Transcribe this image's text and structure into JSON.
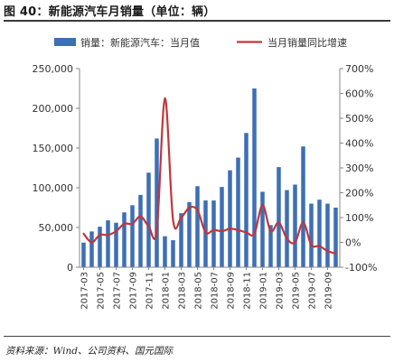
{
  "header": {
    "title": "图 40：新能源汽车月销量（单位：辆）"
  },
  "footer": {
    "source": "资料来源：Wind、公司资料、国元国际"
  },
  "chart_data": {
    "type": "bar",
    "secondary_type": "line",
    "x": [
      "2017-03",
      "2017-04",
      "2017-05",
      "2017-06",
      "2017-07",
      "2017-08",
      "2017-09",
      "2017-10",
      "2017-11",
      "2017-12",
      "2018-01",
      "2018-02",
      "2018-03",
      "2018-04",
      "2018-05",
      "2018-06",
      "2018-07",
      "2018-08",
      "2018-09",
      "2018-10",
      "2018-11",
      "2018-12",
      "2019-01",
      "2019-02",
      "2019-03",
      "2019-04",
      "2019-05",
      "2019-06",
      "2019-07",
      "2019-08",
      "2019-09",
      "2019-10"
    ],
    "x_tick_labels": [
      "2017-03",
      "2017-05",
      "2017-07",
      "2017-09",
      "2017-11",
      "2018-01",
      "2018-03",
      "2018-05",
      "2018-07",
      "2018-09",
      "2018-11",
      "2019-01",
      "2019-03",
      "2019-05",
      "2019-07",
      "2019-09"
    ],
    "series": [
      {
        "name": "销量：新能源汽车：当月值",
        "kind": "bar",
        "axis": "left",
        "color": "#3d6fb5",
        "values": [
          31000,
          45000,
          51000,
          59000,
          56000,
          69000,
          78000,
          91000,
          119000,
          162000,
          39000,
          34000,
          68000,
          82000,
          102000,
          84000,
          84000,
          101000,
          122000,
          138000,
          169000,
          225000,
          95000,
          53000,
          126000,
          97000,
          104000,
          152000,
          80000,
          85000,
          80000,
          75000
        ]
      },
      {
        "name": "当月销量同比增速",
        "kind": "line",
        "axis": "right",
        "color": "#c0373b",
        "values": [
          35,
          0,
          30,
          30,
          45,
          75,
          75,
          105,
          65,
          50,
          580,
          90,
          100,
          140,
          130,
          40,
          50,
          45,
          55,
          50,
          40,
          35,
          150,
          45,
          80,
          15,
          0,
          80,
          -10,
          -15,
          -35,
          -45
        ]
      }
    ],
    "y_left": {
      "min": 0,
      "max": 250000,
      "ticks": [
        "0",
        "50,000",
        "100,000",
        "150,000",
        "200,000",
        "250,000"
      ]
    },
    "y_right": {
      "min": -100,
      "max": 700,
      "ticks": [
        "-100%",
        "0%",
        "100%",
        "200%",
        "300%",
        "400%",
        "500%",
        "600%",
        "700%"
      ]
    },
    "legend_position": "top",
    "grid": false
  }
}
